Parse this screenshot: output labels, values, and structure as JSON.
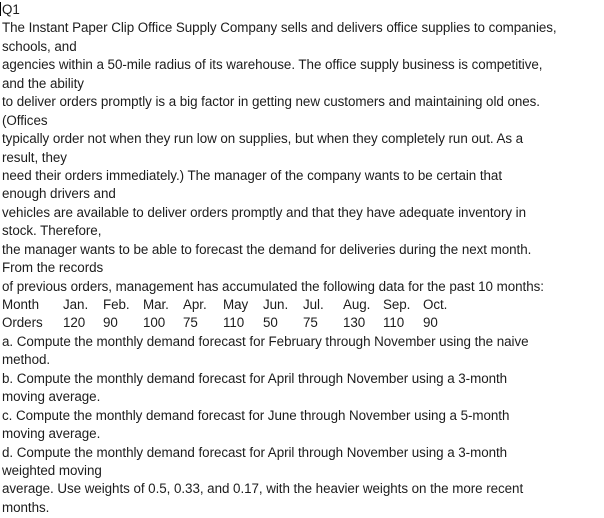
{
  "doc": {
    "heading": "Q1",
    "body_lines": [
      "The Instant Paper Clip Office Supply Company sells and delivers office supplies to companies,",
      "schools, and",
      "agencies within a 50-mile radius of its warehouse. The office supply business is competitive,",
      "and the ability",
      "to deliver orders promptly is a big factor in getting new customers and maintaining old ones.",
      "(Offices",
      "typically order not when they run low on supplies, but when they completely run out. As a",
      "result, they",
      "need their orders immediately.) The manager of the company wants to be certain that",
      "enough drivers and",
      "vehicles are available to deliver orders promptly and that they have adequate inventory in",
      "stock. Therefore,",
      "the manager wants to be able to forecast the demand for deliveries during the next month.",
      "From the records",
      "of previous orders, management has accumulated the following data for the past 10 months:"
    ],
    "table": {
      "month_label": "Month",
      "orders_label": "Orders",
      "months": [
        "Jan.",
        "Feb.",
        "Mar.",
        "Apr.",
        "May",
        "Jun.",
        "Jul.",
        "Aug.",
        "Sep.",
        "Oct."
      ],
      "orders": [
        "120",
        "90",
        "100",
        "75",
        "110",
        "50",
        "75",
        "130",
        "110",
        "90"
      ]
    },
    "question_lines": [
      "a. Compute the monthly demand forecast for February through November using the naive",
      "method.",
      "b. Compute the monthly demand forecast for April through November using a 3-month",
      "moving average.",
      "c. Compute the monthly demand forecast for June through November using a 5-month",
      "moving average.",
      "d. Compute the monthly demand forecast for April through November using a 3-month",
      "weighted moving",
      "average. Use weights of 0.5, 0.33, and 0.17, with the heavier weights on the more recent",
      "months."
    ]
  }
}
